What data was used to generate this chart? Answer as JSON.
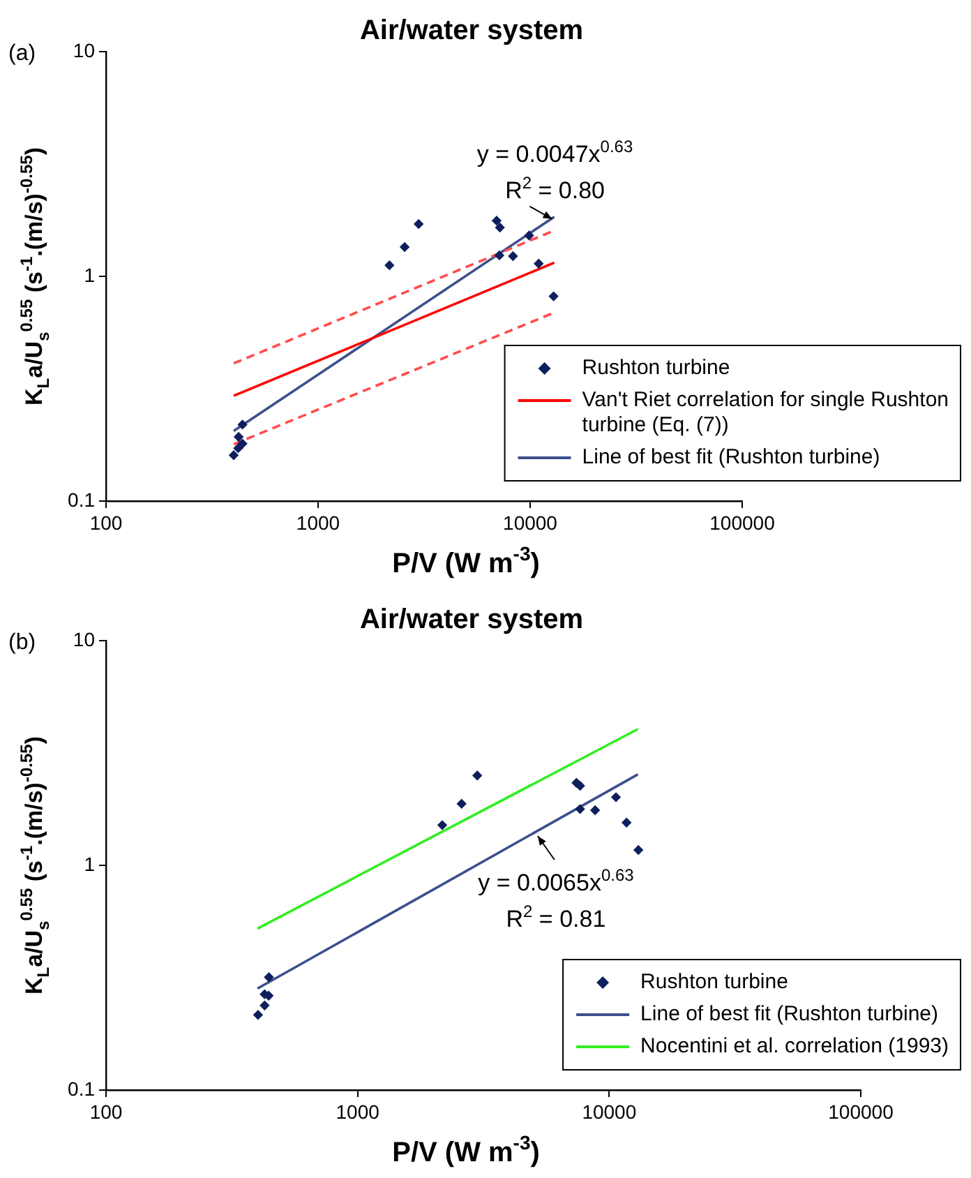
{
  "chart_data": [
    {
      "type": "scatter",
      "title": "Air/water system",
      "xlabel": "P/V (W m$^{-3}$)",
      "ylabel": "K$_{L}$a/U$_{s}$$^{0.55}$ (s$^{-1}$.(m/s)$^{-0.55}$)",
      "log": "xy",
      "xlim": [
        100,
        100000
      ],
      "xticks": [
        100,
        1000,
        10000,
        100000
      ],
      "ylim": [
        0.1,
        10
      ],
      "yticks": [
        0.1,
        1,
        10
      ],
      "legend": "bottom right",
      "annotations": [
        "(a)",
        "y = 0.0047x$^{0.63}$",
        {
          "text": "R$^{2}$ = 0.80",
          "x": 12700,
          "y": 1.8
        }
      ],
      "series": [
        {
          "name": "Rushton turbine",
          "type": "scatter",
          "marker": "diamond",
          "color": "#0d1f5c",
          "x": [
            400,
            420,
            440,
            422,
            440,
            2170,
            2560,
            2980,
            6950,
            7200,
            7160,
            8300,
            9890,
            10970,
            12900
          ],
          "values": [
            0.16,
            0.172,
            0.18,
            0.193,
            0.219,
            1.12,
            1.35,
            1.71,
            1.77,
            1.65,
            1.24,
            1.23,
            1.52,
            1.14,
            0.815
          ]
        },
        {
          "name": "Van't Riet correlation for single Rushton turbine (Eq. (7))",
          "type": "line",
          "marker": "none",
          "color": "#ff0000",
          "x": [
            400,
            13000
          ],
          "values": [
            0.294,
            1.15
          ]
        },
        {
          "type": "line",
          "marker": "none",
          "color": "#ff4d4d",
          "line_style": "dashed",
          "x": [
            400,
            13000
          ],
          "values": [
            0.41,
            1.6
          ]
        },
        {
          "type": "line",
          "marker": "none",
          "color": "#ff4d4d",
          "line_style": "dashed",
          "x": [
            400,
            13000
          ],
          "values": [
            0.179,
            0.69
          ]
        },
        {
          "name": "Line of best fit (Rushton turbine)",
          "type": "line",
          "marker": "none",
          "color": "#3d4f8c",
          "x": [
            400,
            13000
          ],
          "values": [
            0.205,
            1.84
          ]
        }
      ]
    },
    {
      "type": "scatter",
      "title": "Air/water system",
      "xlabel": "P/V (W m$^{-3}$)",
      "ylabel": "K$_{L}$a/U$_{s}$$^{0.55}$ (s$^{-1}$.(m/s)$^{-0.55}$)",
      "log": "xy",
      "xlim": [
        100,
        100000
      ],
      "xticks": [
        100,
        1000,
        10000,
        100000
      ],
      "ylim": [
        0.1,
        10
      ],
      "yticks": [
        0.1,
        1,
        10
      ],
      "legend": "bottom right",
      "annotations": [
        "(b)",
        {
          "text": "y = 0.0065x$^{0.63}$",
          "x": 5200,
          "y": 1.35
        },
        "R$^{2}$ = 0.81"
      ],
      "series": [
        {
          "name": "Rushton turbine",
          "type": "scatter",
          "marker": "diamond",
          "color": "#0d1f5c",
          "x": [
            402,
            427,
            427,
            443,
            444,
            2170,
            2590,
            2990,
            7410,
            7660,
            7660,
            8790,
            10640,
            11720,
            13060
          ],
          "values": [
            0.216,
            0.238,
            0.267,
            0.263,
            0.318,
            1.51,
            1.88,
            2.51,
            2.33,
            2.26,
            1.78,
            1.76,
            2.01,
            1.55,
            1.17
          ]
        },
        {
          "name": "Line of best fit (Rushton turbine)",
          "type": "line",
          "marker": "none",
          "color": "#3d4f8c",
          "x": [
            400,
            13000
          ],
          "values": [
            0.283,
            2.54
          ]
        },
        {
          "name": "Nocentini et al. correlation (1993)",
          "type": "line",
          "marker": "none",
          "color": "#33ee22",
          "x": [
            400,
            13000
          ],
          "values": [
            0.523,
            4.04
          ]
        }
      ]
    }
  ]
}
